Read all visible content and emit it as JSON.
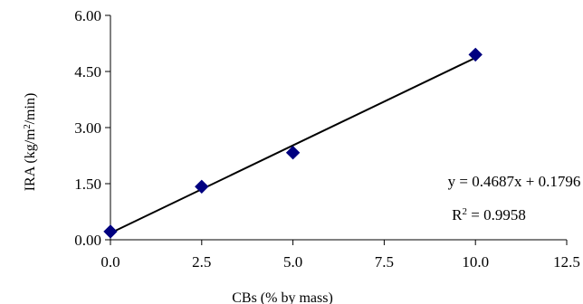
{
  "chart_data": {
    "type": "scatter",
    "xlabel": "CBs (% by mass)",
    "ylabel_main": "IRA  (kg/m",
    "ylabel_sup": "2",
    "ylabel_end": "/min)",
    "xlim": [
      0,
      12.5
    ],
    "ylim": [
      0,
      6
    ],
    "x_ticks": [
      "0.0",
      "2.5",
      "5.0",
      "7.5",
      "10.0",
      "12.5"
    ],
    "y_ticks": [
      "0.00",
      "1.50",
      "3.00",
      "4.50",
      "6.00"
    ],
    "grid": false,
    "marker_color": "#000080",
    "series": [
      {
        "x": [
          0,
          2.5,
          5,
          10
        ],
        "y": [
          0.22,
          1.42,
          2.33,
          4.95
        ]
      }
    ],
    "trendline": {
      "slope": 0.4687,
      "intercept": 0.1796
    },
    "equation_text": "y = 0.4687x + 0.1796",
    "r2_prefix": "R",
    "r2_sup": "2",
    "r2_value": " = 0.9958"
  }
}
